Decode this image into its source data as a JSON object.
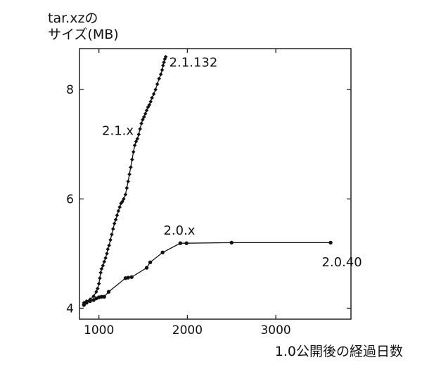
{
  "chart_data": {
    "type": "line",
    "ylabel_line1": "tar.xzの",
    "ylabel_line2": "サイズ(MB)",
    "xlabel": "1.0公開後の経過日数",
    "xlim": [
      780,
      3850
    ],
    "ylim": [
      3.8,
      8.75
    ],
    "xticks": [
      1000,
      2000,
      3000
    ],
    "yticks": [
      4,
      6,
      8
    ],
    "xtick_labels": [
      "1000",
      "2000",
      "3000"
    ],
    "ytick_labels": [
      "4",
      "6",
      "8"
    ],
    "grid": false,
    "series": [
      {
        "name": "2.1.x",
        "marker": "diamond",
        "x": [
          830,
          860,
          900,
          940,
          970,
          985,
          1000,
          1010,
          1020,
          1030,
          1045,
          1060,
          1075,
          1090,
          1100,
          1115,
          1130,
          1145,
          1160,
          1175,
          1190,
          1205,
          1220,
          1235,
          1250,
          1265,
          1280,
          1300,
          1315,
          1330,
          1345,
          1360,
          1375,
          1390,
          1405,
          1420,
          1435,
          1450,
          1465,
          1480,
          1495,
          1510,
          1525,
          1540,
          1555,
          1570,
          1585,
          1600,
          1620,
          1640,
          1660,
          1680,
          1700,
          1715,
          1725,
          1735,
          1745,
          1755
        ],
        "y": [
          4.1,
          4.13,
          4.16,
          4.22,
          4.3,
          4.36,
          4.45,
          4.55,
          4.65,
          4.72,
          4.78,
          4.85,
          4.92,
          5.0,
          5.08,
          5.15,
          5.25,
          5.35,
          5.45,
          5.55,
          5.62,
          5.7,
          5.78,
          5.85,
          5.92,
          5.95,
          6.0,
          6.08,
          6.2,
          6.32,
          6.45,
          6.58,
          6.72,
          6.86,
          6.98,
          7.05,
          7.1,
          7.18,
          7.28,
          7.38,
          7.45,
          7.5,
          7.56,
          7.62,
          7.68,
          7.72,
          7.78,
          7.85,
          7.92,
          8.0,
          8.1,
          8.2,
          8.28,
          8.36,
          8.44,
          8.5,
          8.56,
          8.6
        ]
      },
      {
        "name": "2.0.x",
        "marker": "circle",
        "x": [
          830,
          860,
          900,
          940,
          970,
          1000,
          1030,
          1060,
          1110,
          1300,
          1330,
          1370,
          1540,
          1580,
          1720,
          1920,
          1990,
          2500,
          3620
        ],
        "y": [
          4.06,
          4.1,
          4.13,
          4.15,
          4.18,
          4.2,
          4.21,
          4.21,
          4.3,
          4.55,
          4.56,
          4.57,
          4.74,
          4.84,
          5.02,
          5.19,
          5.19,
          5.2,
          5.2
        ]
      }
    ],
    "annotations": [
      {
        "text": "2.1.132",
        "x": 1795,
        "y": 8.42,
        "anchor": "start"
      },
      {
        "text": "2.1.x",
        "x": 1035,
        "y": 7.17,
        "anchor": "start"
      },
      {
        "text": "2.0.x",
        "x": 1730,
        "y": 5.35,
        "anchor": "start"
      },
      {
        "text": "2.0.40",
        "x": 3520,
        "y": 4.77,
        "anchor": "start"
      }
    ]
  }
}
